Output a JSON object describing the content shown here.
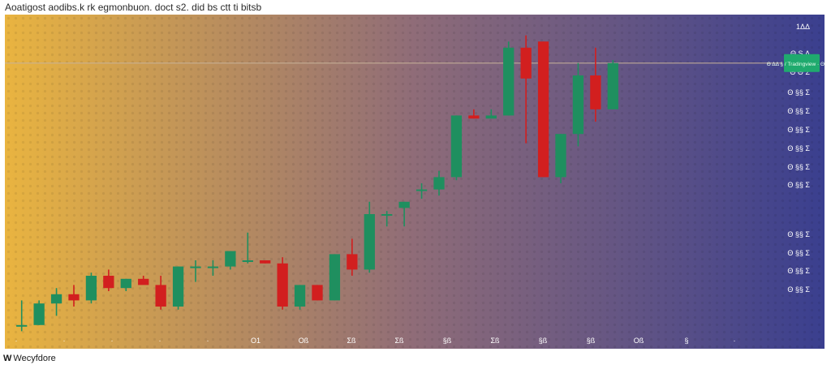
{
  "header": {
    "title": "Aoatigost aodibs.k rk egmonbuon. doct s2. did bs ctt ti bitsb"
  },
  "footer": {
    "logo_mark": "W",
    "logo_text": "Wecyfdore"
  },
  "colors": {
    "bg_left": "#e9b440",
    "bg_mid": "#8f6c78",
    "bg_right": "#3a3f8f",
    "up": "#1f8f5f",
    "down": "#d21f1f",
    "price_line": "#c9b39a",
    "tag_bg": "#1faa6e",
    "axis_text": "#ffffff"
  },
  "chart_data": {
    "type": "candlestick",
    "title": "Aoatigost aodibs.k rk egmonbuon. doct s2. did bs ctt ti bitsb",
    "y_tick_labels": [
      "1ΔΔ",
      "Θ S Δ",
      "Θ Θ Σ",
      "Θ §§ Σ",
      "Θ §§ Σ",
      "Θ §§ Σ",
      "Θ §§ Σ",
      "Θ §§ Σ",
      "Θ §§ Σ",
      "Θ §§ Σ",
      "Θ §§ Σ",
      "Θ §§ Σ",
      "Θ §§ Σ"
    ],
    "x_tick_labels": [
      "·",
      "·",
      "·",
      "·",
      "·",
      "O1",
      "Oß",
      "Σß",
      "Σß",
      "§ß",
      "Σß",
      "§ß",
      "§ß",
      "Oß",
      "§",
      "·"
    ],
    "current_price_label": "Θ ΔΔ § / Tradingview · ΘΘΘΘ",
    "ylim": [
      0,
      100
    ],
    "grid": false,
    "candles": [
      {
        "o": 4,
        "h": 12,
        "l": 2,
        "c": 4
      },
      {
        "o": 4,
        "h": 12,
        "l": 4,
        "c": 11
      },
      {
        "o": 11,
        "h": 16,
        "l": 7,
        "c": 14
      },
      {
        "o": 14,
        "h": 17,
        "l": 10,
        "c": 12
      },
      {
        "o": 12,
        "h": 21,
        "l": 11,
        "c": 20
      },
      {
        "o": 20,
        "h": 22,
        "l": 15,
        "c": 16
      },
      {
        "o": 16,
        "h": 19,
        "l": 15,
        "c": 19
      },
      {
        "o": 19,
        "h": 20,
        "l": 18,
        "c": 17
      },
      {
        "o": 17,
        "h": 20,
        "l": 9,
        "c": 10
      },
      {
        "o": 10,
        "h": 23,
        "l": 9,
        "c": 23
      },
      {
        "o": 23,
        "h": 25,
        "l": 18,
        "c": 23
      },
      {
        "o": 23,
        "h": 25,
        "l": 20,
        "c": 23
      },
      {
        "o": 23,
        "h": 28,
        "l": 22,
        "c": 28
      },
      {
        "o": 25,
        "h": 34,
        "l": 24,
        "c": 25
      },
      {
        "o": 25,
        "h": 25,
        "l": 24,
        "c": 24
      },
      {
        "o": 24,
        "h": 26,
        "l": 9,
        "c": 10
      },
      {
        "o": 10,
        "h": 17,
        "l": 9,
        "c": 17
      },
      {
        "o": 17,
        "h": 17,
        "l": 12,
        "c": 12
      },
      {
        "o": 12,
        "h": 27,
        "l": 12,
        "c": 27
      },
      {
        "o": 27,
        "h": 32,
        "l": 20,
        "c": 22
      },
      {
        "o": 22,
        "h": 44,
        "l": 21,
        "c": 40
      },
      {
        "o": 40,
        "h": 41,
        "l": 36,
        "c": 40
      },
      {
        "o": 42,
        "h": 44,
        "l": 36,
        "c": 44
      },
      {
        "o": 48,
        "h": 50,
        "l": 45,
        "c": 48
      },
      {
        "o": 48,
        "h": 54,
        "l": 46,
        "c": 52
      },
      {
        "o": 52,
        "h": 72,
        "l": 51,
        "c": 72
      },
      {
        "o": 72,
        "h": 74,
        "l": 71,
        "c": 71
      },
      {
        "o": 71,
        "h": 74,
        "l": 71,
        "c": 72
      },
      {
        "o": 72,
        "h": 96,
        "l": 72,
        "c": 94
      },
      {
        "o": 94,
        "h": 98,
        "l": 63,
        "c": 84
      },
      {
        "o": 96,
        "h": 96,
        "l": 52,
        "c": 52
      },
      {
        "o": 52,
        "h": 66,
        "l": 50,
        "c": 66
      },
      {
        "o": 66,
        "h": 89,
        "l": 62,
        "c": 85
      },
      {
        "o": 85,
        "h": 94,
        "l": 70,
        "c": 74
      },
      {
        "o": 74,
        "h": 90,
        "l": 74,
        "c": 89
      }
    ]
  }
}
